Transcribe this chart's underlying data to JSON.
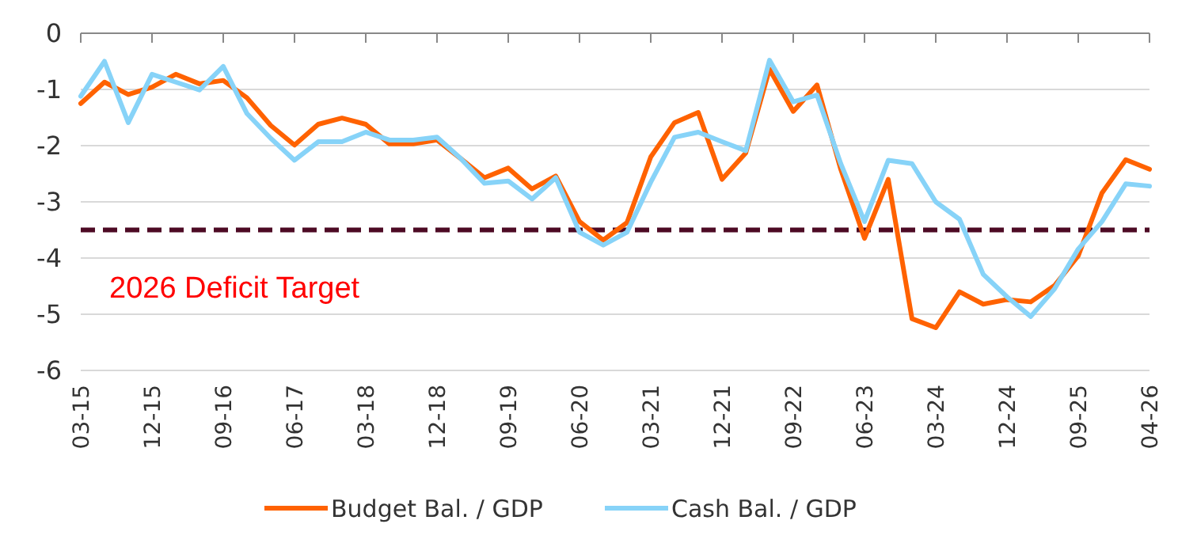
{
  "chart_data": {
    "type": "line",
    "categories": [
      "03-15",
      null,
      null,
      "12-15",
      null,
      null,
      "09-16",
      null,
      null,
      "06-17",
      null,
      null,
      "03-18",
      null,
      null,
      "12-18",
      null,
      null,
      "09-19",
      null,
      null,
      "06-20",
      null,
      null,
      "03-21",
      null,
      null,
      "12-21",
      null,
      null,
      "09-22",
      null,
      null,
      "06-23",
      null,
      null,
      "03-24",
      null,
      null,
      "12-24",
      null,
      null,
      "09-25",
      null,
      null,
      "04-26"
    ],
    "series": [
      {
        "name": "Budget Bal. / GDP",
        "color": "#ff6200",
        "values": [
          -1.25,
          -0.87,
          -1.09,
          -0.96,
          -0.73,
          -0.9,
          -0.84,
          -1.15,
          -1.64,
          -1.99,
          -1.62,
          -1.51,
          -1.62,
          -1.97,
          -1.97,
          -1.9,
          -2.23,
          -2.57,
          -2.4,
          -2.77,
          -2.54,
          -3.35,
          -3.68,
          -3.37,
          -2.2,
          -1.59,
          -1.41,
          -2.6,
          -2.13,
          -0.64,
          -1.39,
          -0.92,
          -2.42,
          -3.65,
          -2.6,
          -5.08,
          -5.24,
          -4.6,
          -4.82,
          -4.74,
          -4.78,
          -4.49,
          -3.96,
          -2.84,
          -2.25,
          -2.42
        ]
      },
      {
        "name": "Cash Bal. / GDP",
        "color": "#87d3f8",
        "values": [
          -1.12,
          -0.5,
          -1.59,
          -0.73,
          -0.87,
          -1.01,
          -0.59,
          -1.43,
          -1.87,
          -2.26,
          -1.93,
          -1.93,
          -1.76,
          -1.9,
          -1.9,
          -1.85,
          -2.23,
          -2.67,
          -2.63,
          -2.95,
          -2.57,
          -3.54,
          -3.77,
          -3.54,
          -2.65,
          -1.85,
          -1.76,
          -1.93,
          -2.09,
          -0.48,
          -1.22,
          -1.1,
          -2.32,
          -3.35,
          -2.26,
          -2.32,
          -3.0,
          -3.31,
          -4.29,
          -4.69,
          -5.04,
          -4.55,
          -3.84,
          -3.35,
          -2.68,
          -2.72
        ]
      }
    ],
    "ylim": [
      -6,
      0
    ],
    "yticks": [
      -6,
      -5,
      -4,
      -3,
      -2,
      -1,
      0
    ],
    "grid": "y",
    "legend": "bottom",
    "ref_lines": [
      {
        "axis": "y",
        "value": -3.5,
        "color": "#4d0a24",
        "line_style": "dashed"
      }
    ],
    "annotations": [
      "2026 Deficit Target"
    ]
  }
}
